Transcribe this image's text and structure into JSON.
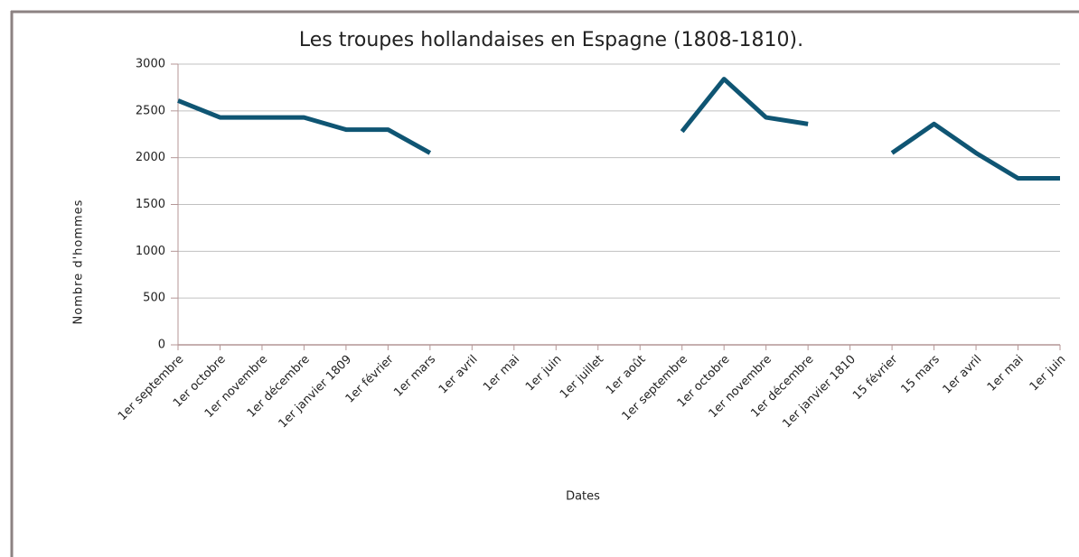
{
  "chart_data": {
    "type": "line",
    "title": "Les troupes hollandaises en Espagne (1808-1810).",
    "x_label": "Dates",
    "y_label": "Nombre d'hommes",
    "categories": [
      "1er septembre",
      "1er octobre",
      "1er novembre",
      "1er décembre",
      "1er janvier 1809",
      "1er février",
      "1er mars",
      "1er avril",
      "1er mai",
      "1er juin",
      "1er juillet",
      "1er août",
      "1er septembre",
      "1er octobre",
      "1er novembre",
      "1er décembre",
      "1er janvier 1810",
      "15 février",
      "15 mars",
      "1er avril",
      "1er mai",
      "1er juin"
    ],
    "series": [
      {
        "name": "Nombre d'hommes",
        "color": "#0f5573",
        "values": [
          2610,
          2430,
          2430,
          2430,
          2300,
          2300,
          2050,
          null,
          null,
          null,
          null,
          null,
          2280,
          2840,
          2430,
          2360,
          null,
          2050,
          2360,
          2050,
          1780,
          1780
        ]
      }
    ],
    "ylim": [
      0,
      3000
    ],
    "yticks": [
      0,
      500,
      1000,
      1500,
      2000,
      2500,
      3000
    ],
    "grid": true
  }
}
